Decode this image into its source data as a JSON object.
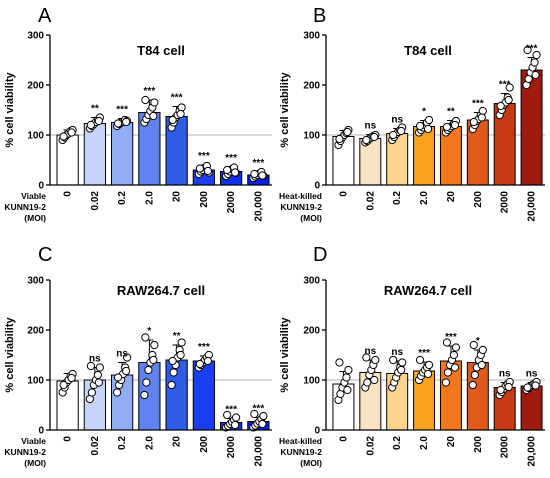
{
  "chart_data": [
    {
      "type": "bar",
      "panel": "A",
      "title": "T84 cell",
      "ylabel": "% cell viability",
      "xgroup": [
        "Viable",
        "KUNN19-2",
        "(MOI)"
      ],
      "ylim": [
        0,
        300
      ],
      "yticks": [
        0,
        100,
        200,
        300
      ],
      "reference_line": 100,
      "categories": [
        "0",
        "0.02",
        "0.2",
        "2.0",
        "20",
        "200",
        "2000",
        "20,000"
      ],
      "values": [
        100,
        123,
        125,
        145,
        137,
        30,
        27,
        20
      ],
      "errors": [
        10,
        12,
        8,
        25,
        20,
        10,
        9,
        6
      ],
      "significance": [
        "",
        "**",
        "***",
        "***",
        "***",
        "***",
        "***",
        "***"
      ],
      "colors": [
        "#ffffff",
        "#c5d4f8",
        "#93adf4",
        "#5f82ec",
        "#2f5ce6",
        "#1b3ff0",
        "#1230ee",
        "#0a1fe6"
      ],
      "points": [
        [
          90,
          95,
          100,
          103,
          108,
          110,
          97,
          105
        ],
        [
          113,
          118,
          122,
          126,
          130,
          135,
          120,
          128
        ],
        [
          118,
          122,
          125,
          127,
          130,
          128,
          123,
          126
        ],
        [
          125,
          132,
          140,
          148,
          155,
          165,
          170,
          138
        ],
        [
          115,
          125,
          135,
          140,
          148,
          155,
          130,
          142
        ],
        [
          22,
          27,
          30,
          35,
          38,
          25,
          33,
          28
        ],
        [
          18,
          22,
          27,
          32,
          35,
          24,
          30,
          25
        ],
        [
          14,
          17,
          20,
          23,
          26,
          18,
          22,
          19
        ]
      ]
    },
    {
      "type": "bar",
      "panel": "B",
      "title": "T84 cell",
      "ylabel": "% cell viability",
      "xgroup": [
        "Heat-killed",
        "KUNN19-2",
        "(MOI)"
      ],
      "ylim": [
        0,
        300
      ],
      "yticks": [
        0,
        100,
        200,
        300
      ],
      "reference_line": 100,
      "categories": [
        "0",
        "0.02",
        "0.2",
        "2.0",
        "20",
        "200",
        "2000",
        "20,000"
      ],
      "values": [
        97,
        93,
        103,
        117,
        117,
        130,
        163,
        230
      ],
      "errors": [
        12,
        8,
        10,
        12,
        12,
        15,
        20,
        25
      ],
      "significance": [
        "",
        "ns",
        "ns",
        "*",
        "**",
        "***",
        "***",
        "***"
      ],
      "colors": [
        "#ffffff",
        "#f8e4c4",
        "#fcd48c",
        "#f8a21e",
        "#f07820",
        "#e05a1c",
        "#c63a16",
        "#a01a10"
      ],
      "points": [
        [
          80,
          88,
          95,
          100,
          104,
          110,
          92,
          106
        ],
        [
          85,
          88,
          92,
          95,
          98,
          100,
          90,
          96
        ],
        [
          90,
          96,
          102,
          106,
          110,
          115,
          100,
          108
        ],
        [
          105,
          110,
          115,
          120,
          125,
          130,
          118,
          112
        ],
        [
          105,
          110,
          114,
          118,
          122,
          128,
          116,
          120
        ],
        [
          112,
          120,
          128,
          132,
          140,
          148,
          126,
          135
        ],
        [
          140,
          150,
          160,
          165,
          175,
          195,
          158,
          170
        ],
        [
          200,
          212,
          225,
          235,
          245,
          260,
          270,
          220
        ]
      ]
    },
    {
      "type": "bar",
      "panel": "C",
      "title": "RAW264.7 cell",
      "ylabel": "% cell viability",
      "xgroup": [
        "Viable",
        "KUNN19-2",
        "(MOI)"
      ],
      "ylim": [
        0,
        300
      ],
      "yticks": [
        0,
        100,
        200,
        300
      ],
      "reference_line": 100,
      "categories": [
        "0",
        "0.02",
        "0.2",
        "2.0",
        "20",
        "200",
        "2000",
        "20,000"
      ],
      "values": [
        98,
        100,
        110,
        135,
        140,
        138,
        15,
        17
      ],
      "errors": [
        15,
        25,
        25,
        45,
        30,
        10,
        8,
        8
      ],
      "significance": [
        "",
        "ns",
        "ns",
        "*",
        "**",
        "***",
        "***",
        "***"
      ],
      "colors": [
        "#ffffff",
        "#c5d4f8",
        "#93adf4",
        "#5f82ec",
        "#2f5ce6",
        "#1b3ff0",
        "#1230ee",
        "#0a1fe6"
      ],
      "points": [
        [
          75,
          85,
          95,
          100,
          108,
          112,
          90,
          104
        ],
        [
          62,
          75,
          90,
          100,
          110,
          125,
          128,
          95
        ],
        [
          75,
          90,
          100,
          112,
          125,
          145,
          105,
          118
        ],
        [
          70,
          95,
          120,
          135,
          150,
          170,
          185,
          140
        ],
        [
          90,
          115,
          130,
          145,
          160,
          175,
          138,
          150
        ],
        [
          125,
          130,
          135,
          140,
          145,
          150,
          132,
          138
        ],
        [
          5,
          8,
          12,
          16,
          20,
          25,
          30,
          10
        ],
        [
          5,
          9,
          13,
          17,
          22,
          28,
          32,
          12
        ]
      ]
    },
    {
      "type": "bar",
      "panel": "D",
      "title": "RAW264.7 cell",
      "ylabel": "% cell viability",
      "xgroup": [
        "Heat-killed",
        "KUNN19-2",
        "(MOI)"
      ],
      "ylim": [
        0,
        300
      ],
      "yticks": [
        0,
        100,
        200,
        300
      ],
      "reference_line": 100,
      "categories": [
        "0",
        "0.02",
        "0.2",
        "2.0",
        "20",
        "200",
        "2000",
        "20,000"
      ],
      "values": [
        92,
        115,
        113,
        118,
        138,
        135,
        85,
        88
      ],
      "errors": [
        25,
        25,
        25,
        18,
        30,
        25,
        10,
        7
      ],
      "significance": [
        "",
        "ns",
        "ns",
        "***",
        "***",
        "*",
        "ns",
        "ns"
      ],
      "colors": [
        "#ffffff",
        "#f8e4c4",
        "#fcd48c",
        "#f8a21e",
        "#f07820",
        "#e05a1c",
        "#c63a16",
        "#a01a10"
      ],
      "points": [
        [
          60,
          72,
          85,
          95,
          105,
          120,
          135,
          80
        ],
        [
          85,
          95,
          110,
          120,
          130,
          140,
          145,
          100
        ],
        [
          85,
          95,
          105,
          115,
          125,
          135,
          140,
          120
        ],
        [
          100,
          108,
          115,
          120,
          125,
          130,
          140,
          112
        ],
        [
          95,
          115,
          130,
          140,
          150,
          165,
          175,
          125
        ],
        [
          90,
          110,
          125,
          140,
          150,
          160,
          170,
          130
        ],
        [
          70,
          76,
          82,
          88,
          92,
          96,
          80,
          86
        ],
        [
          80,
          84,
          87,
          90,
          93,
          96,
          85,
          89
        ]
      ]
    }
  ]
}
